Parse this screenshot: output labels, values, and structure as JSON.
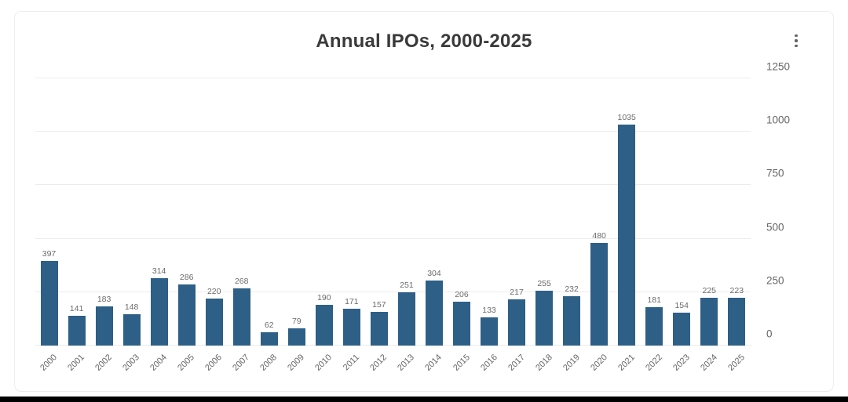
{
  "card": {
    "title": "Annual IPOs, 2000-2025",
    "menu_icon": "kebab-menu"
  },
  "chart_data": {
    "type": "bar",
    "title": "Annual IPOs, 2000-2025",
    "categories": [
      "2000",
      "2001",
      "2002",
      "2003",
      "2004",
      "2005",
      "2006",
      "2007",
      "2008",
      "2009",
      "2010",
      "2011",
      "2012",
      "2013",
      "2014",
      "2015",
      "2016",
      "2017",
      "2018",
      "2019",
      "2020",
      "2021",
      "2022",
      "2023",
      "2024",
      "2025"
    ],
    "values": [
      397,
      141,
      183,
      148,
      314,
      286,
      220,
      268,
      62,
      79,
      190,
      171,
      157,
      251,
      304,
      206,
      133,
      217,
      255,
      232,
      480,
      1035,
      181,
      154,
      225,
      223
    ],
    "value_labels_shown": true,
    "y_ticks": [
      0,
      250,
      500,
      750,
      1000,
      1250
    ],
    "ylim": [
      0,
      1250
    ],
    "y_axis_side": "right",
    "x_tick_rotation": -45,
    "grid": true,
    "bar_color": "#2d5f87",
    "xlabel": "",
    "ylabel": ""
  }
}
